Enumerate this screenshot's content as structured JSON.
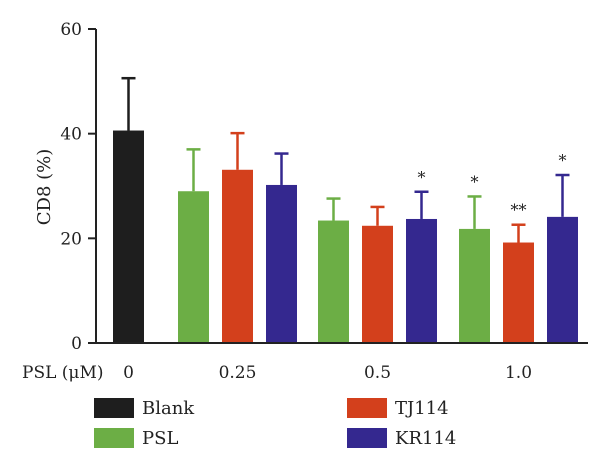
{
  "chart_data": {
    "type": "bar",
    "title": "",
    "xlabel": "PSL (μM)",
    "ylabel": "CD8 (%)",
    "ylim": [
      0,
      60
    ],
    "y_ticks": [
      0,
      20,
      40,
      60
    ],
    "groups": [
      "0",
      "0.25",
      "0.5",
      "1.0"
    ],
    "series": [
      {
        "name": "Blank",
        "color": "#1e1e1e",
        "values": [
          40.6,
          null,
          null,
          null
        ],
        "errors": [
          10.0,
          null,
          null,
          null
        ],
        "sig": [
          "",
          "",
          "",
          ""
        ]
      },
      {
        "name": "PSL",
        "color": "#6cae45",
        "values": [
          null,
          29.0,
          23.4,
          21.8
        ],
        "errors": [
          null,
          8.0,
          4.2,
          6.2
        ],
        "sig": [
          "",
          "",
          "",
          "*"
        ]
      },
      {
        "name": "TJ114",
        "color": "#d3401c",
        "values": [
          null,
          33.1,
          22.4,
          19.2
        ],
        "errors": [
          null,
          7.0,
          3.6,
          3.4
        ],
        "sig": [
          "",
          "",
          "",
          "**"
        ]
      },
      {
        "name": "KR114",
        "color": "#34288f",
        "values": [
          null,
          30.2,
          23.7,
          24.1
        ],
        "errors": [
          null,
          6.0,
          5.2,
          8.0
        ],
        "sig": [
          "",
          "",
          "*",
          "*"
        ]
      }
    ],
    "legend": [
      {
        "name": "Blank",
        "color": "#1e1e1e"
      },
      {
        "name": "TJ114",
        "color": "#d3401c"
      },
      {
        "name": "PSL",
        "color": "#6cae45"
      },
      {
        "name": "KR114",
        "color": "#34288f"
      }
    ],
    "grid": false,
    "legend_position": "bottom"
  }
}
